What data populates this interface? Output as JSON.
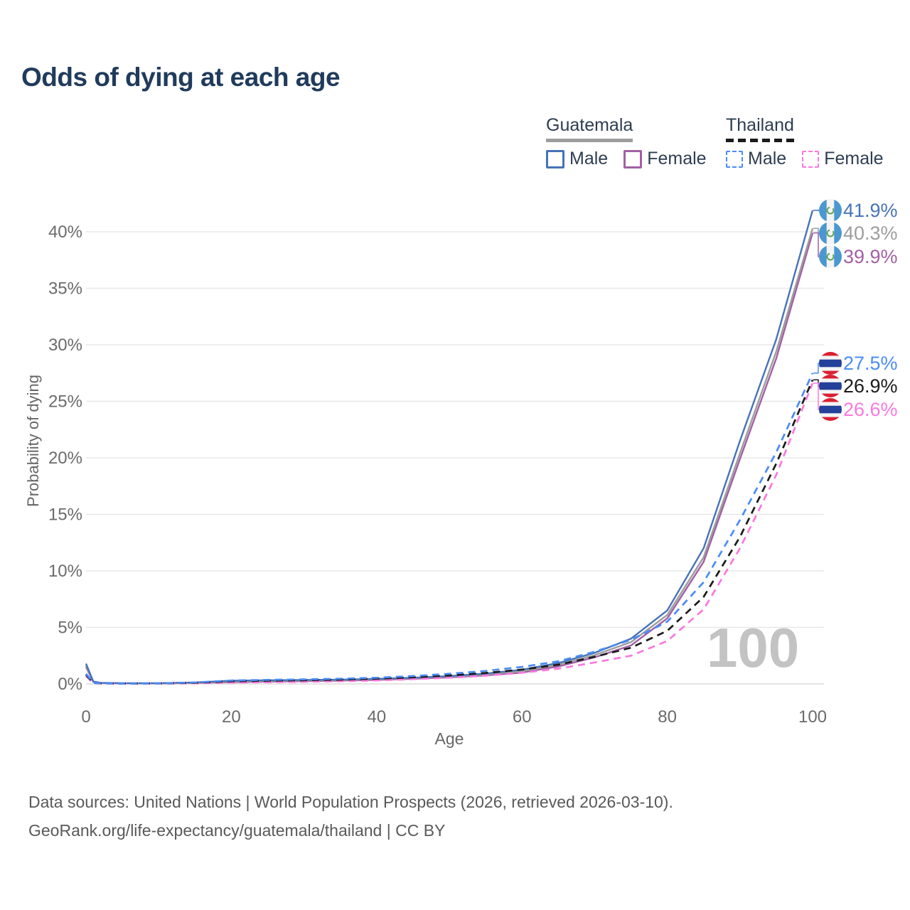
{
  "title": "Odds of dying at each age",
  "watermark": "100",
  "colors": {
    "title": "#203b5c",
    "tick_label": "#6b6b6b",
    "axis_title": "#666666",
    "gridline": "#e8e8e8",
    "baseline": "#dcdcdc",
    "watermark": "#c3c3c3",
    "footer": "#595959",
    "legend_text": "#2e3d51"
  },
  "legend": {
    "groups": [
      {
        "name": "Guatemala",
        "line_style": "solid",
        "underline_color": "#9d9d9d",
        "items": [
          {
            "label": "Male",
            "color": "#4673b8"
          },
          {
            "label": "Female",
            "color": "#a25fa5"
          }
        ]
      },
      {
        "name": "Thailand",
        "line_style": "dashed",
        "underline_color": "#1b1b1b",
        "items": [
          {
            "label": "Male",
            "color": "#4b8cf5"
          },
          {
            "label": "Female",
            "color": "#fb78e0"
          }
        ]
      }
    ]
  },
  "chart_data": {
    "type": "line",
    "title": "Odds of dying at each age",
    "xlabel": "Age",
    "ylabel": "Probability of dying",
    "xlim": [
      0,
      100
    ],
    "ylim": [
      0,
      42
    ],
    "grid": "horizontal",
    "legend_position": "top-right",
    "xticks": {
      "values": [
        0,
        20,
        40,
        60,
        80,
        100
      ],
      "labels": [
        "0",
        "20",
        "40",
        "60",
        "80",
        "100"
      ]
    },
    "yticks": {
      "values": [
        0,
        5,
        10,
        15,
        20,
        25,
        30,
        35,
        40
      ],
      "labels": [
        "0%",
        "5%",
        "10%",
        "15%",
        "20%",
        "25%",
        "30%",
        "35%",
        "40%"
      ]
    },
    "x": [
      0,
      1,
      2,
      5,
      10,
      15,
      20,
      25,
      30,
      35,
      40,
      45,
      50,
      55,
      60,
      65,
      70,
      75,
      80,
      85,
      90,
      95,
      100
    ],
    "series": [
      {
        "name": "Guatemala Female",
        "country": "Guatemala",
        "sex": "Female",
        "color": "#a25fa5",
        "dash": false,
        "end_label": "39.9%",
        "values": [
          1.5,
          0.18,
          0.08,
          0.05,
          0.05,
          0.09,
          0.16,
          0.2,
          0.24,
          0.29,
          0.35,
          0.45,
          0.57,
          0.75,
          1.0,
          1.55,
          2.35,
          3.4,
          5.8,
          10.8,
          19.9,
          28.8,
          39.9
        ]
      },
      {
        "name": "Guatemala Both sexes",
        "country": "Guatemala",
        "sex": "Both",
        "color": "#9d9d9d",
        "dash": false,
        "end_label": "40.3%",
        "values": [
          1.65,
          0.2,
          0.09,
          0.055,
          0.055,
          0.11,
          0.22,
          0.27,
          0.3,
          0.33,
          0.4,
          0.5,
          0.63,
          0.83,
          1.12,
          1.7,
          2.55,
          3.7,
          6.1,
          11.2,
          20.4,
          29.4,
          40.3
        ]
      },
      {
        "name": "Guatemala Male",
        "country": "Guatemala",
        "sex": "Male",
        "color": "#4673b8",
        "dash": false,
        "end_label": "41.9%",
        "values": [
          1.8,
          0.22,
          0.1,
          0.06,
          0.06,
          0.13,
          0.28,
          0.33,
          0.35,
          0.38,
          0.45,
          0.55,
          0.7,
          0.92,
          1.25,
          1.85,
          2.75,
          4.0,
          6.5,
          12.0,
          21.5,
          30.5,
          41.9
        ]
      },
      {
        "name": "Thailand Female",
        "country": "Thailand",
        "sex": "Female",
        "color": "#fb78e0",
        "dash": true,
        "end_label": "26.6%",
        "values": [
          0.7,
          0.08,
          0.045,
          0.03,
          0.035,
          0.06,
          0.12,
          0.15,
          0.19,
          0.24,
          0.31,
          0.42,
          0.55,
          0.73,
          0.98,
          1.35,
          1.9,
          2.5,
          3.8,
          6.6,
          12.0,
          18.5,
          26.6
        ]
      },
      {
        "name": "Thailand Both sexes",
        "country": "Thailand",
        "sex": "Both",
        "color": "#1b1b1b",
        "dash": true,
        "end_label": "26.9%",
        "values": [
          0.8,
          0.09,
          0.05,
          0.035,
          0.045,
          0.1,
          0.23,
          0.28,
          0.32,
          0.38,
          0.46,
          0.58,
          0.75,
          0.97,
          1.27,
          1.7,
          2.4,
          3.2,
          4.7,
          7.7,
          13.0,
          19.5,
          26.9
        ]
      },
      {
        "name": "Thailand Male",
        "country": "Thailand",
        "sex": "Male",
        "color": "#4b8cf5",
        "dash": true,
        "end_label": "27.5%",
        "values": [
          0.9,
          0.1,
          0.06,
          0.04,
          0.05,
          0.13,
          0.3,
          0.36,
          0.4,
          0.46,
          0.55,
          0.7,
          0.9,
          1.15,
          1.5,
          2.0,
          2.85,
          3.9,
          5.5,
          9.0,
          14.5,
          20.5,
          27.5
        ]
      }
    ],
    "flag_colors": {
      "guatemala_blue": "#4a97d2",
      "guatemala_emblem": "#5fa352",
      "thailand_red": "#da2032",
      "thailand_blue": "#23419a"
    }
  },
  "footer": {
    "line1": "Data sources: United Nations | World Population Prospects (2026, retrieved 2026-03-10).",
    "line2": "GeoRank.org/life-expectancy/guatemala/thailand | CC BY"
  }
}
